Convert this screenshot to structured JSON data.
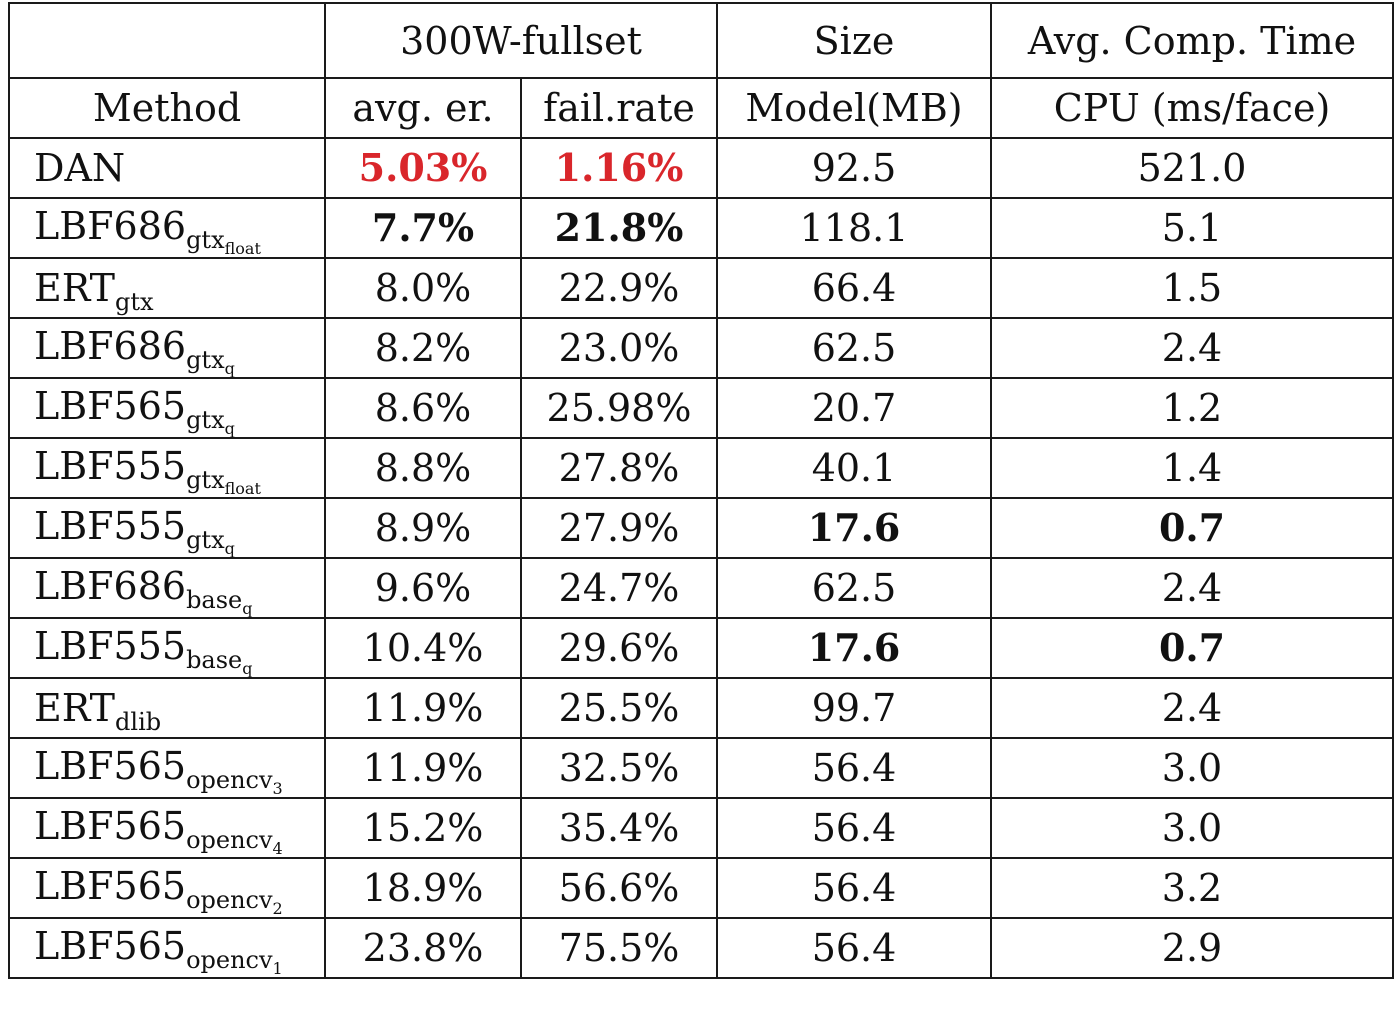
{
  "header": {
    "row1": {
      "method": "",
      "dataset": "300W-fullset",
      "size": "Size",
      "time": "Avg. Comp. Time"
    },
    "row2": {
      "method": "Method",
      "avg_er": "avg. er.",
      "fail_rate": "fail.rate",
      "model": "Model(MB)",
      "cpu": "CPU (ms/face)"
    }
  },
  "rows": [
    {
      "base": "DAN",
      "sub": "",
      "subsub": "",
      "avg_er": "5.03%",
      "fail_rate": "1.16%",
      "model": "92.5",
      "cpu": "521.0"
    },
    {
      "base": "LBF686",
      "sub": "gtx",
      "subsub": "float",
      "avg_er": "7.7%",
      "fail_rate": "21.8%",
      "model": "118.1",
      "cpu": "5.1"
    },
    {
      "base": "ERT",
      "sub": "gtx",
      "subsub": "",
      "avg_er": "8.0%",
      "fail_rate": "22.9%",
      "model": "66.4",
      "cpu": "1.5"
    },
    {
      "base": "LBF686",
      "sub": "gtx",
      "subsub": "q",
      "avg_er": "8.2%",
      "fail_rate": "23.0%",
      "model": "62.5",
      "cpu": "2.4"
    },
    {
      "base": "LBF565",
      "sub": "gtx",
      "subsub": "q",
      "avg_er": "8.6%",
      "fail_rate": "25.98%",
      "model": "20.7",
      "cpu": "1.2"
    },
    {
      "base": "LBF555",
      "sub": "gtx",
      "subsub": "float",
      "avg_er": "8.8%",
      "fail_rate": "27.8%",
      "model": "40.1",
      "cpu": "1.4"
    },
    {
      "base": "LBF555",
      "sub": "gtx",
      "subsub": "q",
      "avg_er": "8.9%",
      "fail_rate": "27.9%",
      "model": "17.6",
      "cpu": "0.7"
    },
    {
      "base": "LBF686",
      "sub": "base",
      "subsub": "q",
      "avg_er": "9.6%",
      "fail_rate": "24.7%",
      "model": "62.5",
      "cpu": "2.4"
    },
    {
      "base": "LBF555",
      "sub": "base",
      "subsub": "q",
      "avg_er": "10.4%",
      "fail_rate": "29.6%",
      "model": "17.6",
      "cpu": "0.7"
    },
    {
      "base": "ERT",
      "sub": "dlib",
      "subsub": "",
      "avg_er": "11.9%",
      "fail_rate": "25.5%",
      "model": "99.7",
      "cpu": "2.4"
    },
    {
      "base": "LBF565",
      "sub": "opencv",
      "subsub": "3",
      "avg_er": "11.9%",
      "fail_rate": "32.5%",
      "model": "56.4",
      "cpu": "3.0"
    },
    {
      "base": "LBF565",
      "sub": "opencv",
      "subsub": "4",
      "avg_er": "15.2%",
      "fail_rate": "35.4%",
      "model": "56.4",
      "cpu": "3.0"
    },
    {
      "base": "LBF565",
      "sub": "opencv",
      "subsub": "2",
      "avg_er": "18.9%",
      "fail_rate": "56.6%",
      "model": "56.4",
      "cpu": "3.2"
    },
    {
      "base": "LBF565",
      "sub": "opencv",
      "subsub": "1",
      "avg_er": "23.8%",
      "fail_rate": "75.5%",
      "model": "56.4",
      "cpu": "2.9"
    }
  ],
  "highlight": {
    "red": [
      {
        "row": 0,
        "col": "avg_er"
      },
      {
        "row": 0,
        "col": "fail_rate"
      }
    ],
    "bold": [
      {
        "row": 1,
        "col": "avg_er"
      },
      {
        "row": 1,
        "col": "fail_rate"
      },
      {
        "row": 6,
        "col": "model"
      },
      {
        "row": 6,
        "col": "cpu"
      },
      {
        "row": 8,
        "col": "model"
      },
      {
        "row": 8,
        "col": "cpu"
      }
    ]
  },
  "colors": {
    "best": "#d9262b",
    "text": "#111111",
    "border": "#1a1a1a"
  }
}
